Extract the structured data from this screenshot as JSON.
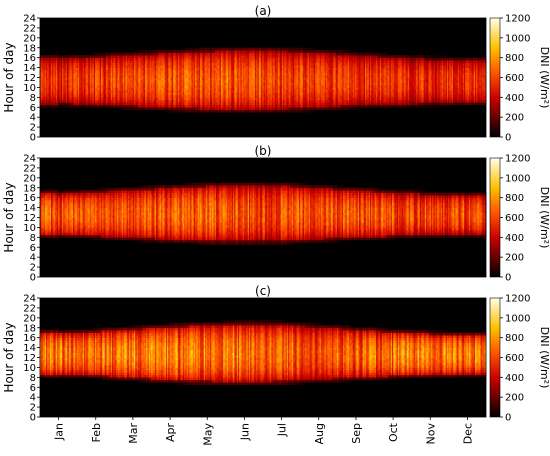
{
  "chart_data": [
    {
      "type": "heatmap",
      "panel_label": "(a)",
      "ylabel": "Hour of day",
      "y_ticks": [
        0,
        2,
        4,
        6,
        8,
        10,
        12,
        14,
        16,
        18,
        20,
        22,
        24
      ],
      "ylim": [
        0,
        24
      ],
      "x_categories": [
        "Jan",
        "Feb",
        "Mar",
        "Apr",
        "May",
        "Jun",
        "Jul",
        "Aug",
        "Sep",
        "Oct",
        "Nov",
        "Dec"
      ],
      "colorbar": {
        "label": "DNI (W/m²)",
        "ticks": [
          0,
          200,
          400,
          600,
          800,
          1000,
          1200
        ],
        "range": [
          0,
          1200
        ]
      },
      "daylight_hours": {
        "sunrise_by_month": [
          6.2,
          6.0,
          5.6,
          5.2,
          4.9,
          4.8,
          4.9,
          5.3,
          5.7,
          6.0,
          6.2,
          6.3
        ],
        "sunset_by_month": [
          16.4,
          16.8,
          17.2,
          17.6,
          18.0,
          18.2,
          18.1,
          17.7,
          17.2,
          16.7,
          16.3,
          16.2
        ]
      },
      "peak_dni_by_month": [
        750,
        800,
        850,
        900,
        900,
        880,
        850,
        800,
        800,
        780,
        760,
        740
      ]
    },
    {
      "type": "heatmap",
      "panel_label": "(b)",
      "ylabel": "Hour of day",
      "y_ticks": [
        0,
        2,
        4,
        6,
        8,
        10,
        12,
        14,
        16,
        18,
        20,
        22,
        24
      ],
      "ylim": [
        0,
        24
      ],
      "x_categories": [
        "Jan",
        "Feb",
        "Mar",
        "Apr",
        "May",
        "Jun",
        "Jul",
        "Aug",
        "Sep",
        "Oct",
        "Nov",
        "Dec"
      ],
      "colorbar": {
        "label": "DNI (W/m²)",
        "ticks": [
          0,
          200,
          400,
          600,
          800,
          1000,
          1200
        ],
        "range": [
          0,
          1200
        ]
      },
      "daylight_hours": {
        "sunrise_by_month": [
          8.0,
          7.7,
          7.3,
          6.9,
          6.6,
          6.5,
          6.6,
          7.0,
          7.4,
          7.7,
          8.0,
          8.1
        ],
        "sunset_by_month": [
          17.3,
          17.7,
          18.2,
          18.6,
          19.0,
          19.2,
          19.1,
          18.6,
          18.1,
          17.6,
          17.2,
          17.1
        ]
      },
      "peak_dni_by_month": [
        880,
        900,
        900,
        920,
        930,
        920,
        880,
        860,
        880,
        870,
        860,
        860
      ]
    },
    {
      "type": "heatmap",
      "panel_label": "(c)",
      "ylabel": "Hour of day",
      "y_ticks": [
        0,
        2,
        4,
        6,
        8,
        10,
        12,
        14,
        16,
        18,
        20,
        22,
        24
      ],
      "ylim": [
        0,
        24
      ],
      "x_categories": [
        "Jan",
        "Feb",
        "Mar",
        "Apr",
        "May",
        "Jun",
        "Jul",
        "Aug",
        "Sep",
        "Oct",
        "Nov",
        "Dec"
      ],
      "colorbar": {
        "label": "DNI (W/m²)",
        "ticks": [
          0,
          200,
          400,
          600,
          800,
          1000,
          1200
        ],
        "range": [
          0,
          1200
        ]
      },
      "daylight_hours": {
        "sunrise_by_month": [
          8.1,
          7.8,
          7.3,
          6.8,
          6.5,
          6.4,
          6.5,
          6.9,
          7.3,
          7.7,
          8.0,
          8.2
        ],
        "sunset_by_month": [
          17.4,
          17.8,
          18.3,
          18.8,
          19.2,
          19.4,
          19.3,
          18.8,
          18.2,
          17.7,
          17.3,
          17.2
        ]
      },
      "peak_dni_by_month": [
        1020,
        1030,
        1040,
        1050,
        1040,
        1030,
        960,
        900,
        950,
        1020,
        1030,
        1020
      ]
    }
  ]
}
